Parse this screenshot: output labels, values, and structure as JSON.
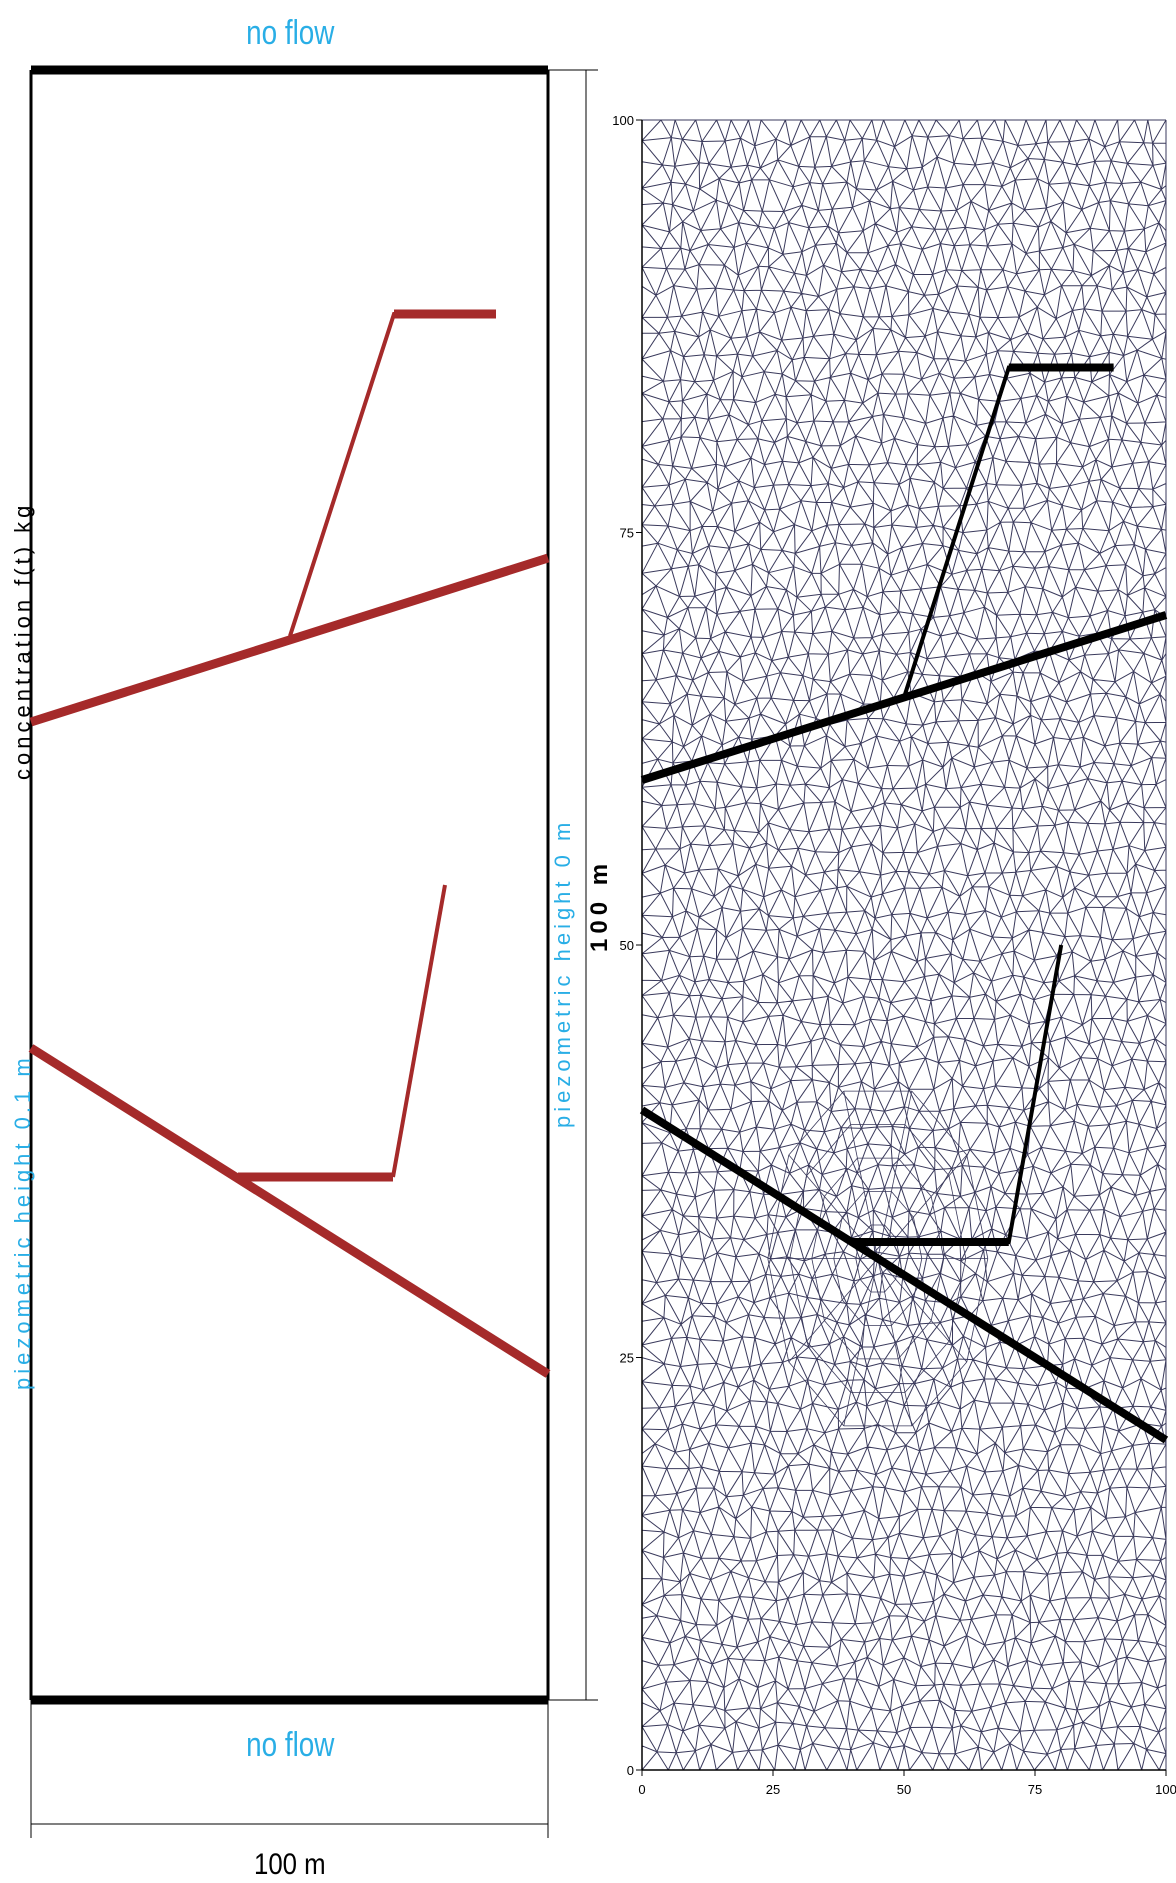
{
  "schematic": {
    "top_label": "no flow",
    "bottom_label": "no flow",
    "left_label": "piezometric height 0.1 m",
    "right_label": "piezometric height 0 m",
    "source_label": "concentration f(t) kg",
    "width_label": "100 m",
    "height_label": "100 m",
    "fracture_color": "#a52a2a",
    "boundary_color": "#000000",
    "label_color": "#29aee6"
  },
  "mesh": {
    "x_ticks": [
      "0",
      "25",
      "50",
      "75",
      "100"
    ],
    "y_ticks": [
      "0",
      "25",
      "50",
      "75",
      "100"
    ],
    "xlim": [
      0,
      100
    ],
    "ylim": [
      0,
      100
    ],
    "mesh_color": "#3a3a5c",
    "fracture_color": "#000000",
    "fractures": [
      {
        "points": [
          [
            0,
            60
          ],
          [
            100,
            70
          ]
        ]
      },
      {
        "points": [
          [
            50,
            65
          ],
          [
            70,
            85
          ],
          [
            90,
            85
          ]
        ]
      },
      {
        "points": [
          [
            0,
            40
          ],
          [
            100,
            20
          ]
        ]
      },
      {
        "points": [
          [
            40,
            32
          ],
          [
            70,
            32
          ],
          [
            80,
            50
          ]
        ]
      }
    ]
  }
}
